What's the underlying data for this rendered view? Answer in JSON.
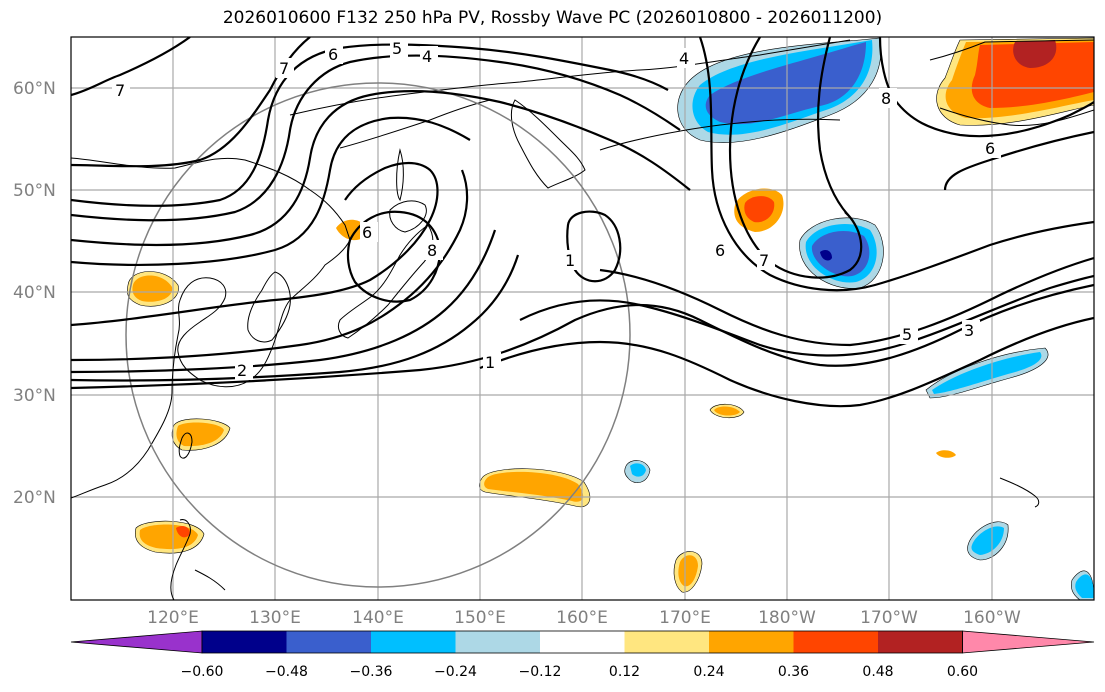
{
  "title": "2026010600 F132 250 hPa PV, Rossby Wave PC (2026010800 - 2026011200)",
  "map": {
    "projection": "PlateCarree, central longitude 180",
    "lon_range": [
      110,
      210
    ],
    "lat_range": [
      10,
      65
    ],
    "lon_ticks": [
      "120°E",
      "130°E",
      "140°E",
      "150°E",
      "160°E",
      "170°E",
      "180°W",
      "170°W",
      "160°W"
    ],
    "lat_ticks": [
      "20°N",
      "30°N",
      "40°N",
      "50°N",
      "60°N"
    ],
    "gridlines": true
  },
  "contour_labels": [
    "7",
    "6",
    "5",
    "4",
    "4",
    "7",
    "6",
    "8",
    "2",
    "1",
    "1",
    "6",
    "7",
    "5",
    "3",
    "8",
    "6"
  ],
  "colorbar": {
    "levels": [
      "−0.60",
      "−0.48",
      "−0.36",
      "−0.24",
      "−0.12",
      "0.12",
      "0.24",
      "0.36",
      "0.48",
      "0.60"
    ],
    "colors": [
      "#9932cc",
      "#00008b",
      "#3a5fcd",
      "#00bfff",
      "#add8e6",
      "#ffffff",
      "#ffe680",
      "#ffa500",
      "#ff4500",
      "#b22222",
      "#ff88aa"
    ]
  },
  "shading": {
    "positive": [
      "#ffe680",
      "#ffa500",
      "#ff4500",
      "#b22222"
    ],
    "negative": [
      "#add8e6",
      "#00bfff",
      "#3a5fcd",
      "#00008b"
    ]
  }
}
